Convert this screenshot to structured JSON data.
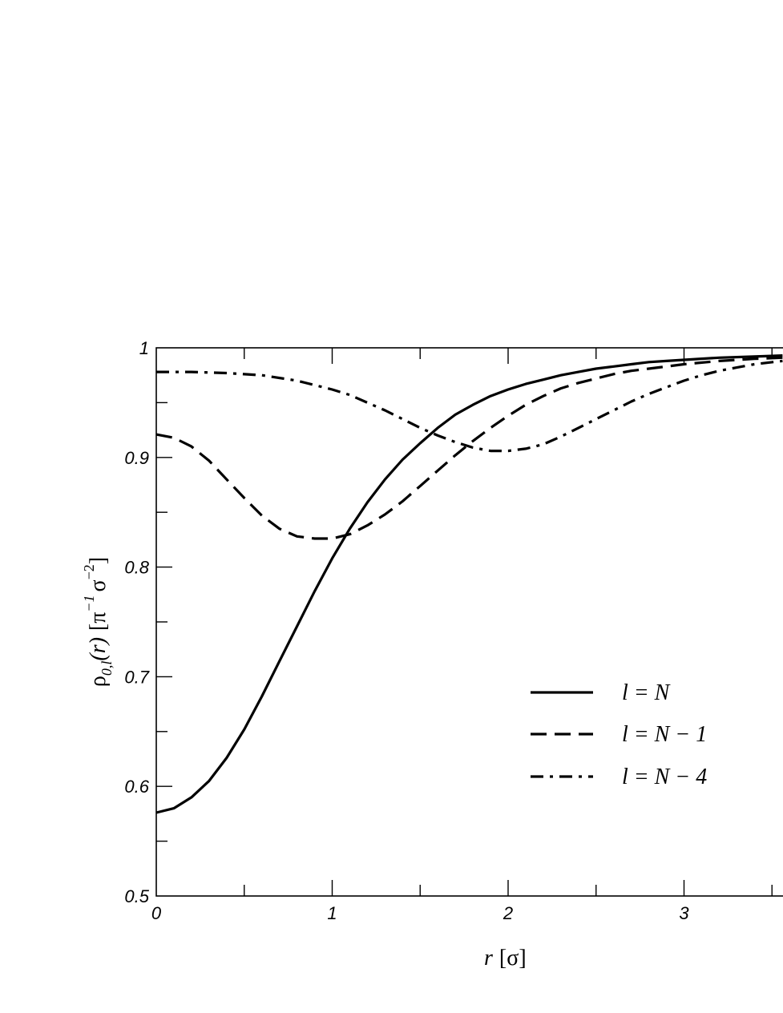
{
  "chart_data": {
    "type": "line",
    "xlabel": {
      "var": "r",
      "unit": "[σ]"
    },
    "ylabel": {
      "rho": "ρ",
      "sub": "0,l",
      "arg": "(r)",
      "units_open": "[π",
      "pi_exp": "−1",
      "sigma": "σ",
      "sigma_exp": "−2",
      "units_close": "]"
    },
    "xlim": [
      0,
      3.56
    ],
    "ylim": [
      0.5,
      1.0
    ],
    "x_ticks": [
      0,
      0.5,
      1,
      1.5,
      2,
      2.5,
      3,
      3.5
    ],
    "x_tick_labels": [
      "0",
      "",
      "1",
      "",
      "2",
      "",
      "3",
      ""
    ],
    "y_ticks": [
      0.5,
      0.55,
      0.6,
      0.65,
      0.7,
      0.75,
      0.8,
      0.85,
      0.9,
      0.95,
      1.0
    ],
    "y_tick_labels": [
      "0.5",
      "",
      "0.6",
      "",
      "0.7",
      "",
      "0.8",
      "",
      "0.9",
      "",
      "1"
    ],
    "grid": false,
    "legend_position": "lower-right",
    "series": [
      {
        "name": "l = N",
        "style": "solid",
        "x": [
          0,
          0.1,
          0.2,
          0.3,
          0.4,
          0.5,
          0.6,
          0.7,
          0.8,
          0.9,
          1.0,
          1.1,
          1.2,
          1.3,
          1.4,
          1.5,
          1.6,
          1.7,
          1.8,
          1.9,
          2.0,
          2.1,
          2.2,
          2.3,
          2.4,
          2.5,
          2.6,
          2.7,
          2.8,
          2.9,
          3.0,
          3.2,
          3.4,
          3.56
        ],
        "y": [
          0.576,
          0.58,
          0.59,
          0.605,
          0.626,
          0.652,
          0.682,
          0.714,
          0.746,
          0.778,
          0.808,
          0.835,
          0.859,
          0.88,
          0.898,
          0.913,
          0.927,
          0.939,
          0.948,
          0.956,
          0.962,
          0.967,
          0.971,
          0.975,
          0.978,
          0.981,
          0.983,
          0.985,
          0.987,
          0.988,
          0.989,
          0.991,
          0.992,
          0.993
        ]
      },
      {
        "name": "l = N − 1",
        "style": "dashed",
        "x": [
          0,
          0.1,
          0.2,
          0.3,
          0.4,
          0.5,
          0.6,
          0.7,
          0.8,
          0.9,
          1.0,
          1.1,
          1.2,
          1.3,
          1.4,
          1.5,
          1.6,
          1.7,
          1.8,
          1.9,
          2.0,
          2.1,
          2.2,
          2.3,
          2.4,
          2.5,
          2.6,
          2.7,
          2.8,
          2.9,
          3.0,
          3.2,
          3.4,
          3.56
        ],
        "y": [
          0.921,
          0.918,
          0.91,
          0.897,
          0.88,
          0.863,
          0.847,
          0.835,
          0.828,
          0.826,
          0.826,
          0.83,
          0.838,
          0.848,
          0.86,
          0.874,
          0.888,
          0.902,
          0.915,
          0.927,
          0.938,
          0.948,
          0.956,
          0.963,
          0.968,
          0.972,
          0.976,
          0.979,
          0.981,
          0.983,
          0.985,
          0.988,
          0.99,
          0.991
        ]
      },
      {
        "name": "l = N − 4",
        "style": "dashdot",
        "x": [
          0,
          0.2,
          0.4,
          0.6,
          0.8,
          1.0,
          1.1,
          1.2,
          1.3,
          1.4,
          1.5,
          1.6,
          1.7,
          1.8,
          1.9,
          2.0,
          2.1,
          2.2,
          2.3,
          2.4,
          2.5,
          2.6,
          2.7,
          2.8,
          2.9,
          3.0,
          3.1,
          3.2,
          3.3,
          3.4,
          3.56
        ],
        "y": [
          0.978,
          0.978,
          0.977,
          0.975,
          0.97,
          0.962,
          0.957,
          0.95,
          0.943,
          0.935,
          0.927,
          0.92,
          0.914,
          0.909,
          0.906,
          0.906,
          0.908,
          0.912,
          0.919,
          0.927,
          0.935,
          0.943,
          0.951,
          0.958,
          0.964,
          0.97,
          0.975,
          0.979,
          0.982,
          0.985,
          0.988
        ]
      }
    ]
  }
}
